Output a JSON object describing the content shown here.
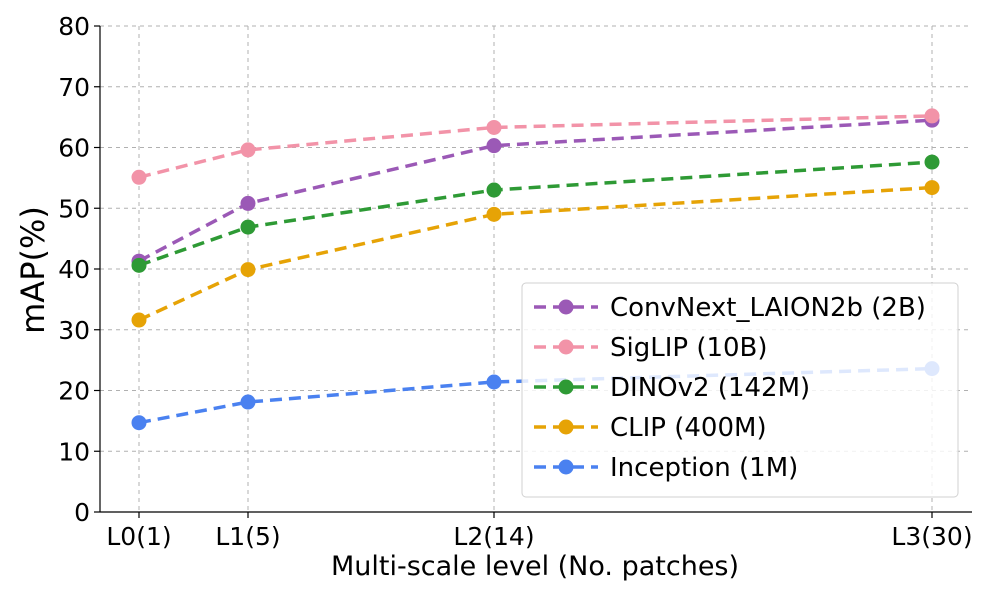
{
  "chart_data": {
    "type": "line",
    "title": "",
    "xlabel": "Multi-scale level (No. patches)",
    "ylabel": "mAP(%)",
    "categories": [
      "L0(1)",
      "L1(5)",
      "L2(14)",
      "L3(30)"
    ],
    "x": [
      1,
      5,
      14,
      30
    ],
    "ylim": [
      0,
      80
    ],
    "yticks": [
      0,
      10,
      20,
      30,
      40,
      50,
      60,
      70,
      80
    ],
    "grid": true,
    "legend_position": "lower-right",
    "series": [
      {
        "name": "ConvNext_LAION2b (2B)",
        "color": "#9b59b6",
        "values": [
          41.3,
          50.8,
          60.3,
          64.5
        ]
      },
      {
        "name": "SigLIP (10B)",
        "color": "#f293a8",
        "values": [
          55.1,
          59.6,
          63.3,
          65.2
        ]
      },
      {
        "name": "DINOv2 (142M)",
        "color": "#2e9a35",
        "values": [
          40.6,
          46.9,
          53.0,
          57.6
        ]
      },
      {
        "name": "CLIP (400M)",
        "color": "#e6a306",
        "values": [
          31.6,
          39.9,
          49.0,
          53.4
        ]
      },
      {
        "name": "Inception (1M)",
        "color": "#4a81f0",
        "values": [
          14.7,
          18.1,
          21.4,
          23.6
        ]
      }
    ]
  }
}
